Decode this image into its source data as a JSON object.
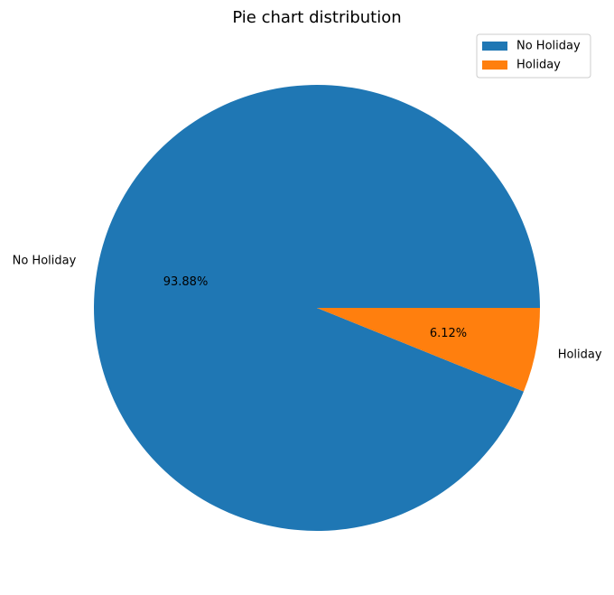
{
  "chart_data": {
    "type": "pie",
    "title": "Pie chart distribution",
    "slices": [
      {
        "label": "No Holiday",
        "value": 93.88,
        "pct_label": "93.88%",
        "color": "#1f77b4"
      },
      {
        "label": "Holiday",
        "value": 6.12,
        "pct_label": "6.12%",
        "color": "#ff7f0e"
      }
    ],
    "start_angle_deg": 0,
    "direction": "counterclockwise",
    "legend": {
      "position": "top-right",
      "entries": [
        "No Holiday",
        "Holiday"
      ]
    }
  }
}
